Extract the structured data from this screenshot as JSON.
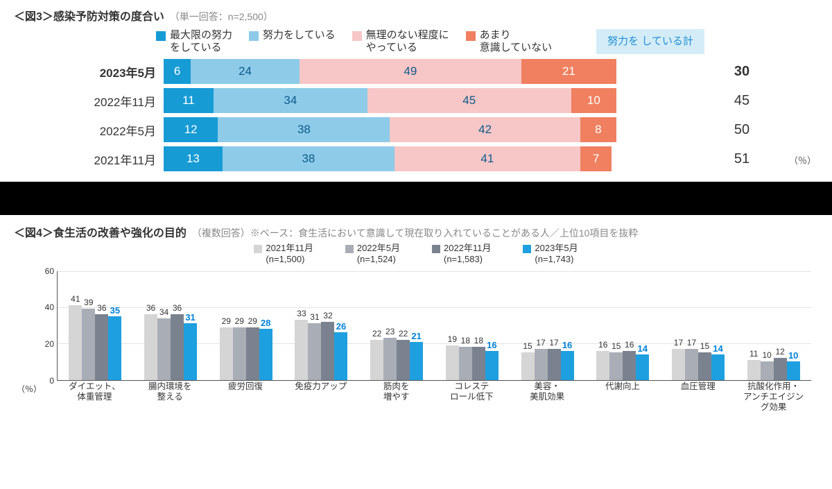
{
  "fig3": {
    "title": "＜図3＞感染予防対策の度合い",
    "subtitle": "（単一回答：n=2,500）",
    "legend": [
      {
        "label": "最大限の努力\nをしている",
        "color": "#169bd5"
      },
      {
        "label": "努力をしている",
        "color": "#8ecbe9"
      },
      {
        "label": "無理のない程度に\nやっている",
        "color": "#f7c6c6"
      },
      {
        "label": "あまり\n意識していない",
        "color": "#f08060"
      }
    ],
    "effort_label": "努力を\nしている計",
    "effort_color_bg": "#d4ecf8",
    "effort_color_text": "#1f8fd1",
    "rows": [
      {
        "label": "2023年5月",
        "bold": true,
        "segs": [
          6,
          24,
          49,
          21
        ],
        "total": 30
      },
      {
        "label": "2022年11月",
        "bold": false,
        "segs": [
          11,
          34,
          45,
          10
        ],
        "total": 45
      },
      {
        "label": "2022年5月",
        "bold": false,
        "segs": [
          12,
          38,
          42,
          8
        ],
        "total": 50
      },
      {
        "label": "2021年11月",
        "bold": false,
        "segs": [
          13,
          38,
          41,
          7
        ],
        "total": 51
      }
    ],
    "seg_colors": [
      "#169bd5",
      "#8ecbe9",
      "#f7c6c6",
      "#f08060"
    ],
    "seg_text_dark": [
      false,
      true,
      true,
      false
    ],
    "pct_label": "（％）"
  },
  "fig4": {
    "title": "＜図4＞食生活の改善や強化の目的",
    "subtitle": "（複数回答）※ベース：食生活において意識して現在取り入れていることがある人／上位10項目を抜粋",
    "legend": [
      {
        "label": "2021年11月\n(n=1,500)",
        "color": "#d5d5d5"
      },
      {
        "label": "2022年5月\n(n=1,524)",
        "color": "#a9aeb6"
      },
      {
        "label": "2022年11月\n(n=1,583)",
        "color": "#7a828f"
      },
      {
        "label": "2023年5月\n(n=1,743)",
        "color": "#1e9fe0"
      }
    ],
    "series_colors": [
      "#d5d5d5",
      "#a9aeb6",
      "#7a828f",
      "#1e9fe0"
    ],
    "ymax": 60,
    "yticks": [
      0,
      20,
      40,
      60
    ],
    "pct_label": "（％）",
    "categories": [
      {
        "label": "ダイエット、\n体重管理",
        "values": [
          41,
          39,
          36,
          35
        ]
      },
      {
        "label": "腸内環境を\n整える",
        "values": [
          36,
          34,
          36,
          31
        ]
      },
      {
        "label": "疲労回復",
        "values": [
          29,
          29,
          29,
          28
        ]
      },
      {
        "label": "免疫力アップ",
        "values": [
          33,
          31,
          32,
          26
        ]
      },
      {
        "label": "筋肉を\n増やす",
        "values": [
          22,
          23,
          22,
          21
        ]
      },
      {
        "label": "コレステ\nロール低下",
        "values": [
          19,
          18,
          18,
          16
        ]
      },
      {
        "label": "美容・\n美肌効果",
        "values": [
          15,
          17,
          17,
          16
        ]
      },
      {
        "label": "代謝向上",
        "values": [
          16,
          15,
          16,
          14
        ]
      },
      {
        "label": "血圧管理",
        "values": [
          17,
          17,
          15,
          14
        ]
      },
      {
        "label": "抗酸化作用・\nアンチエイジン\nグ効果",
        "values": [
          11,
          10,
          12,
          10
        ]
      }
    ]
  }
}
